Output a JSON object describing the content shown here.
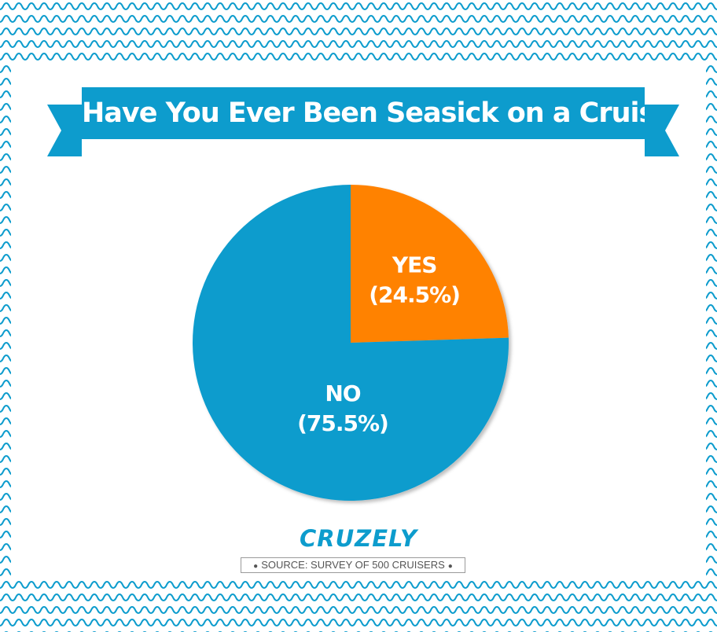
{
  "colors": {
    "accent": "#0d9ccd",
    "banner_fold": "#0a7fa8",
    "yes": "#ff8200",
    "no": "#0d9ccd",
    "pattern": "#0d9ccd"
  },
  "chart_data": {
    "type": "pie",
    "title": "Have You Ever Been Seasick on a Cruise?",
    "slices": [
      {
        "label": "YES",
        "value": 24.5,
        "value_label": "(24.5%)",
        "color": "#ff8200"
      },
      {
        "label": "NO",
        "value": 75.5,
        "value_label": "(75.5%)",
        "color": "#0d9ccd"
      }
    ]
  },
  "brand": "CRUZELY",
  "source": "SOURCE: SURVEY OF 500 CRUISERS"
}
